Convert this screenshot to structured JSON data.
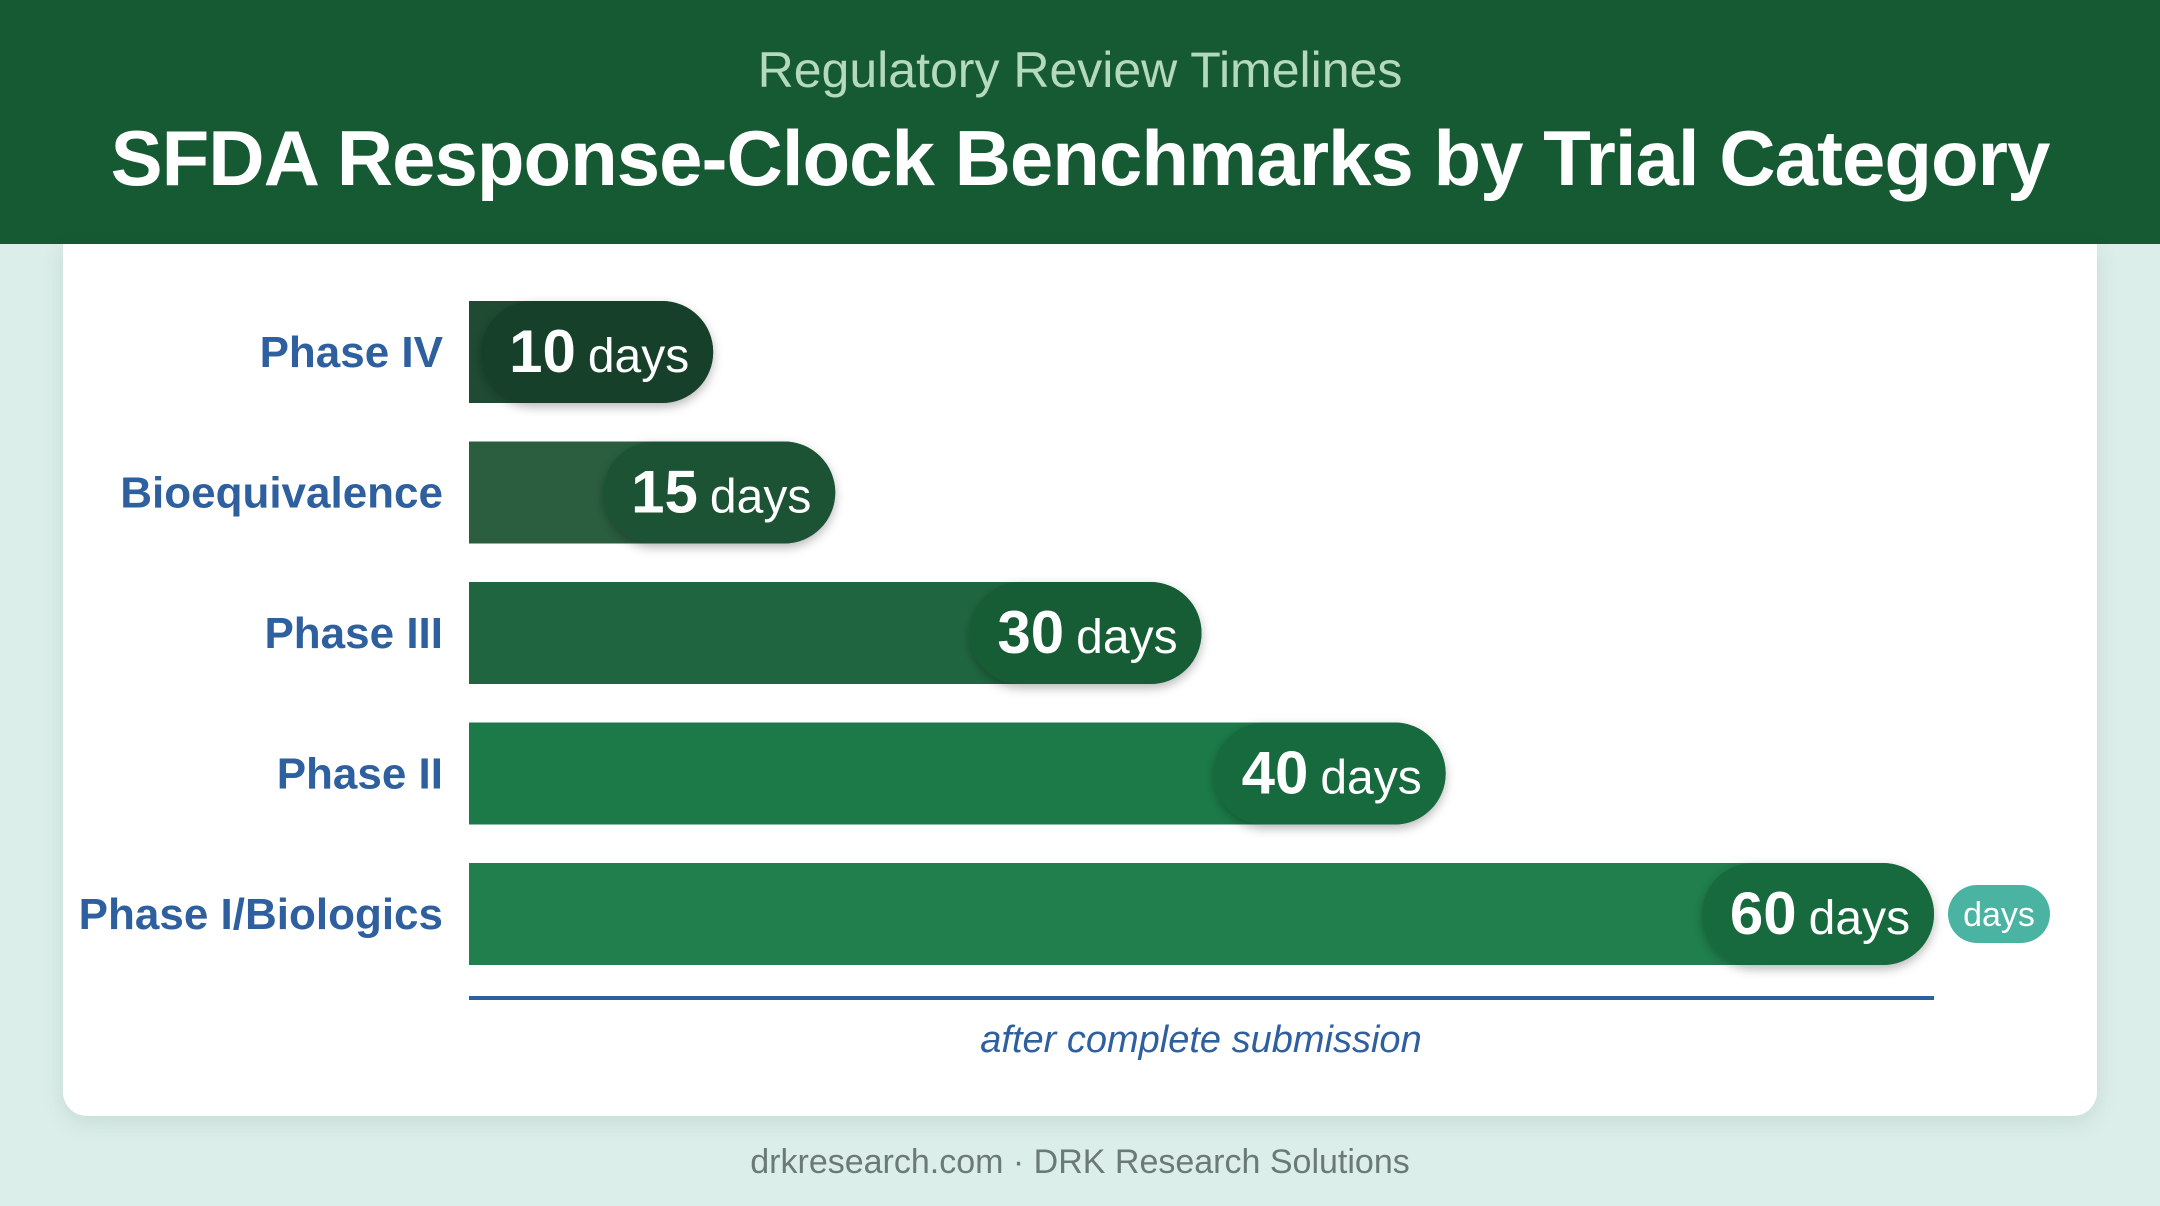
{
  "header": {
    "subtitle": "Regulatory Review Timelines",
    "title": "SFDA Response-Clock Benchmarks by Trial Category"
  },
  "chart_data": {
    "type": "bar",
    "orientation": "horizontal",
    "title": "SFDA Response-Clock Benchmarks by Trial Category",
    "subtitle": "Regulatory Review Timelines",
    "categories": [
      "Phase IV",
      "Bioequivalence",
      "Phase III",
      "Phase II",
      "Phase I/Biologics"
    ],
    "values": [
      10,
      15,
      30,
      40,
      60
    ],
    "unit": "days",
    "xlim": [
      0,
      60
    ],
    "grid": false,
    "axis_caption": "after complete submission",
    "badge": "days",
    "colors": [
      "#1e4b32",
      "#2a5e3f",
      "#1f6640",
      "#1b7a48",
      "#207f4c"
    ],
    "pill_colors": [
      "#183f29",
      "#1f5234",
      "#195c36",
      "#176a3d",
      "#176a3e"
    ],
    "badge_color": "#4bb3a2",
    "axis_color": "#2e5f9e"
  },
  "footer": {
    "text": "drkresearch.com · DRK Research Solutions"
  }
}
